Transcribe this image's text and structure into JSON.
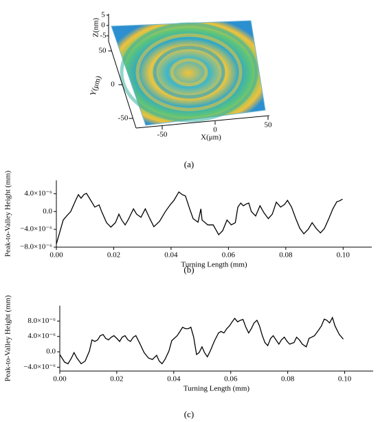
{
  "chart_data": [
    {
      "type": "surface",
      "caption": "(a)",
      "xlabel": "X(μm)",
      "ylabel": "Y(μm)",
      "zlabel": "Z(nm)",
      "xticks": [
        -50,
        0,
        50
      ],
      "yticks": [
        -50,
        0,
        50
      ],
      "zticks": [
        -5,
        0,
        5
      ]
    },
    {
      "type": "line",
      "caption": "(b)",
      "xlabel": "Turning Length (mm)",
      "ylabel": "Peak-to-Valley Height (mm)",
      "color": "#000000",
      "xlim": [
        0,
        0.11
      ],
      "ylim": [
        -8e-06,
        7e-06
      ],
      "xticks": [
        {
          "value": 0,
          "label": "0.00"
        },
        {
          "value": 0.02,
          "label": "0.02"
        },
        {
          "value": 0.04,
          "label": "0.04"
        },
        {
          "value": 0.06,
          "label": "0.06"
        },
        {
          "value": 0.08,
          "label": "0.08"
        },
        {
          "value": 0.1,
          "label": "0.10"
        }
      ],
      "yticks": [
        {
          "value": -8e-06,
          "label": "−8.0×10⁻⁶"
        },
        {
          "value": -4e-06,
          "label": "−4.0×10⁻⁶"
        },
        {
          "value": 0,
          "label": "0.0"
        },
        {
          "value": 4e-06,
          "label": "4.0×10⁻⁶"
        }
      ],
      "x": [
        0,
        0.0024,
        0.0036,
        0.005,
        0.0067,
        0.0077,
        0.0086,
        0.0096,
        0.0105,
        0.012,
        0.0134,
        0.0149,
        0.0158,
        0.0175,
        0.019,
        0.0206,
        0.0218,
        0.0228,
        0.024,
        0.025,
        0.0269,
        0.028,
        0.0295,
        0.031,
        0.0326,
        0.034,
        0.036,
        0.038,
        0.0398,
        0.041,
        0.0427,
        0.0439,
        0.045,
        0.0465,
        0.0477,
        0.0494,
        0.0504,
        0.0508,
        0.0528,
        0.0547,
        0.0566,
        0.058,
        0.0595,
        0.061,
        0.0624,
        0.0633,
        0.0643,
        0.0652,
        0.0662,
        0.0671,
        0.068,
        0.0695,
        0.071,
        0.0724,
        0.0739,
        0.0753,
        0.0767,
        0.0782,
        0.0796,
        0.0806,
        0.082,
        0.0835,
        0.0849,
        0.0863,
        0.0878,
        0.0892,
        0.0906,
        0.0921,
        0.0935,
        0.095,
        0.0964,
        0.0978,
        0.0988,
        0.0998
      ],
      "values": [
        -7.3e-06,
        -1.9e-06,
        -1e-06,
        0,
        2.5e-06,
        3.8e-06,
        3e-06,
        3.8e-06,
        4.1e-06,
        2.5e-06,
        1e-06,
        1.5e-06,
        0,
        -2.5e-06,
        -3.5e-06,
        -2.5e-06,
        -6e-07,
        -1.9e-06,
        -3e-06,
        -1.9e-06,
        6e-07,
        -6e-07,
        -1.3e-06,
        6e-07,
        -1.6e-06,
        -3.4e-06,
        -2.2e-06,
        0,
        1.6e-06,
        2.5e-06,
        4.4e-06,
        3.8e-06,
        3.5e-06,
        6e-07,
        -1.6e-06,
        -2.4e-06,
        6e-07,
        -1.9e-06,
        -3e-06,
        -3e-06,
        -5.2e-06,
        -4.3e-06,
        -1.9e-06,
        -3e-06,
        -2.5e-06,
        1e-06,
        1.9e-06,
        1.3e-06,
        1.7e-06,
        1.9e-06,
        0,
        -1e-06,
        1.3e-06,
        -3e-07,
        -1.6e-06,
        -6e-07,
        2.1e-06,
        1e-06,
        1.6e-06,
        2.5e-06,
        1e-06,
        -1.6e-06,
        -3.8e-06,
        -5e-06,
        -4e-06,
        -2.5e-06,
        -3.8e-06,
        -4.8e-06,
        -3.8e-06,
        -1.6e-06,
        6e-07,
        2.2e-06,
        2.4e-06,
        2.8e-06
      ]
    },
    {
      "type": "line",
      "caption": "(c)",
      "xlabel": "Turning Length (mm)",
      "ylabel": "Peak-to-Valley Height (mm)",
      "color": "#000000",
      "xlim": [
        0,
        0.11
      ],
      "ylim": [
        -5e-06,
        1.2e-05
      ],
      "xticks": [
        {
          "value": 0,
          "label": "0.00"
        },
        {
          "value": 0.02,
          "label": "0.02"
        },
        {
          "value": 0.04,
          "label": "0.04"
        },
        {
          "value": 0.06,
          "label": "0.06"
        },
        {
          "value": 0.08,
          "label": "0.08"
        },
        {
          "value": 0.1,
          "label": "0.10"
        }
      ],
      "yticks": [
        {
          "value": -4e-06,
          "label": "−4.0×10⁻⁶"
        },
        {
          "value": 0,
          "label": "0.0"
        },
        {
          "value": 4e-06,
          "label": "4.0×10⁻⁶"
        },
        {
          "value": 8e-06,
          "label": "8.0×10⁻⁶"
        }
      ],
      "x": [
        0,
        0.0017,
        0.0029,
        0.0041,
        0.005,
        0.006,
        0.0075,
        0.0089,
        0.0104,
        0.0113,
        0.0123,
        0.0133,
        0.0142,
        0.0152,
        0.0161,
        0.0171,
        0.0181,
        0.019,
        0.02,
        0.021,
        0.0219,
        0.0229,
        0.0239,
        0.0248,
        0.0258,
        0.0267,
        0.0282,
        0.0296,
        0.0311,
        0.0325,
        0.034,
        0.0349,
        0.0359,
        0.0369,
        0.0383,
        0.0393,
        0.0402,
        0.0412,
        0.0422,
        0.0431,
        0.0441,
        0.0451,
        0.046,
        0.047,
        0.048,
        0.0489,
        0.0499,
        0.0508,
        0.0518,
        0.0528,
        0.0542,
        0.0557,
        0.0566,
        0.0576,
        0.0586,
        0.0595,
        0.0605,
        0.0614,
        0.0624,
        0.0634,
        0.0643,
        0.0653,
        0.0663,
        0.0672,
        0.0682,
        0.0692,
        0.0701,
        0.0711,
        0.072,
        0.073,
        0.074,
        0.0749,
        0.0759,
        0.0769,
        0.0778,
        0.0788,
        0.0798,
        0.0807,
        0.0822,
        0.0831,
        0.0841,
        0.0851,
        0.0865,
        0.0875,
        0.0884,
        0.0894,
        0.0908,
        0.0918,
        0.0928,
        0.0937,
        0.0947,
        0.0957,
        0.0966,
        0.0981,
        0.0995
      ],
      "values": [
        -7e-07,
        -2.7e-06,
        -3.1e-06,
        -1.6e-06,
        -2e-07,
        -1.6e-06,
        -3.1e-06,
        -2.4e-06,
        2e-07,
        3.1e-06,
        2.7e-06,
        3.1e-06,
        4.2e-06,
        4.5e-06,
        3.5e-06,
        3.1e-06,
        3.8e-06,
        4.2e-06,
        3.5e-06,
        2.7e-06,
        3.8e-06,
        4.2e-06,
        3.1e-06,
        2.7e-06,
        3.8e-06,
        4.2e-06,
        2e-06,
        -2e-07,
        -1.6e-06,
        -2e-06,
        -9e-07,
        -2.4e-06,
        -3.1e-06,
        -2e-06,
        2e-07,
        2.9e-06,
        3.5e-06,
        4.2e-06,
        5.3e-06,
        6.4e-06,
        6e-06,
        6e-06,
        6.4e-06,
        3.8e-06,
        -7e-07,
        -2e-07,
        1.3e-06,
        -2e-07,
        -1.3e-06,
        2e-07,
        2.7e-06,
        4.9e-06,
        5.3e-06,
        4.9e-06,
        6e-06,
        6.7e-06,
        7.8e-06,
        8.7e-06,
        7.8e-06,
        8.2e-06,
        8.4e-06,
        6.4e-06,
        4.9e-06,
        6e-06,
        7.5e-06,
        8.2e-06,
        6.7e-06,
        4.2e-06,
        2.4e-06,
        1.6e-06,
        3.5e-06,
        4.2e-06,
        3.1e-06,
        2e-06,
        3.1e-06,
        3.8e-06,
        2.7e-06,
        2e-06,
        2.4e-06,
        3.8e-06,
        3.1e-06,
        2e-06,
        1.3e-06,
        3.5e-06,
        3.8e-06,
        4.2e-06,
        5.6e-06,
        6.7e-06,
        8.5e-06,
        8.2e-06,
        7.5e-06,
        8.9e-06,
        6.7e-06,
        4.5e-06,
        3.3e-06
      ]
    }
  ]
}
